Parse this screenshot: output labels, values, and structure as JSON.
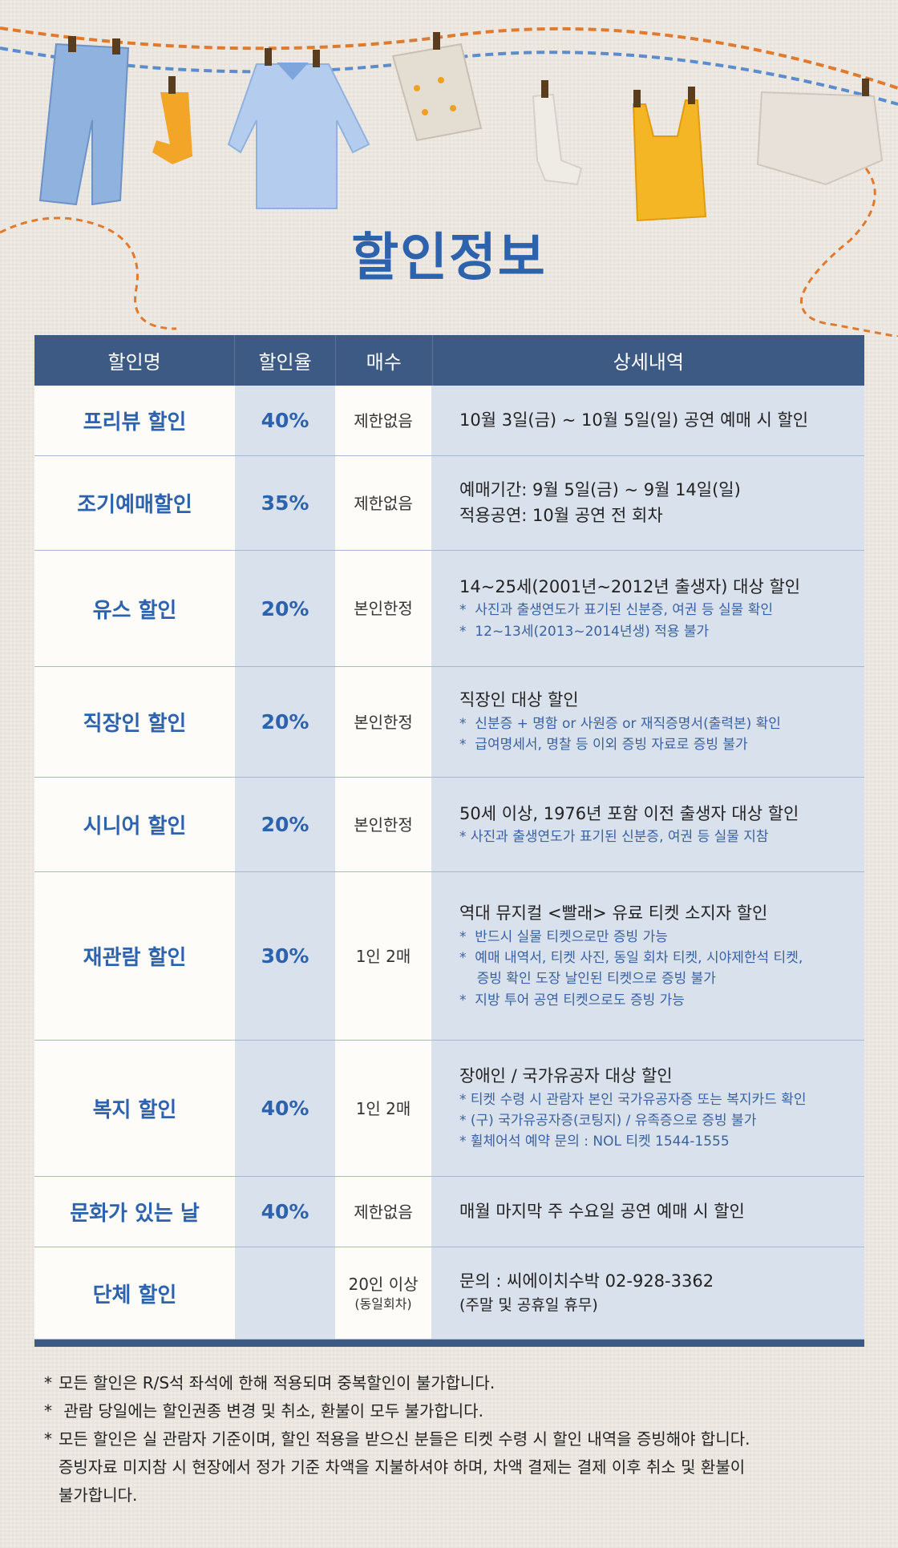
{
  "title": "할인정보",
  "table": {
    "headers": [
      "할인명",
      "할인율",
      "매수",
      "상세내역"
    ],
    "rows": [
      {
        "name": "프리뷰 할인",
        "rate": "40%",
        "qty": "제한없음",
        "qty_sub": "",
        "detail_main": "10월 3일(금) ~ 10월 5일(일) 공연 예매 시 할인",
        "detail_sub": ""
      },
      {
        "name": "조기예매할인",
        "rate": "35%",
        "qty": "제한없음",
        "qty_sub": "",
        "detail_main": "예매기간: 9월 5일(금) ~ 9월 14일(일)\n적용공연: 10월 공연 전 회차",
        "detail_sub": ""
      },
      {
        "name": "유스 할인",
        "rate": "20%",
        "qty": "본인한정",
        "qty_sub": "",
        "detail_main": "14~25세(2001년~2012년 출생자) 대상 할인",
        "detail_sub": "*  사진과 출생연도가 표기된 신분증, 여권 등 실물 확인\n*  12~13세(2013~2014년생) 적용 불가"
      },
      {
        "name": "직장인 할인",
        "rate": "20%",
        "qty": "본인한정",
        "qty_sub": "",
        "detail_main": "직장인 대상 할인",
        "detail_sub": "*  신분증 + 명함 or 사원증 or 재직증명서(출력본) 확인\n*  급여명세서, 명찰 등 이외 증빙 자료로 증빙 불가"
      },
      {
        "name": "시니어 할인",
        "rate": "20%",
        "qty": "본인한정",
        "qty_sub": "",
        "detail_main": "50세 이상, 1976년 포함 이전 출생자 대상 할인",
        "detail_sub": "* 사진과 출생연도가 표기된 신분증, 여권 등 실물 지참"
      },
      {
        "name": "재관람 할인",
        "rate": "30%",
        "qty": "1인 2매",
        "qty_sub": "",
        "detail_main": "역대 뮤지컬 <빨래> 유료 티켓 소지자 할인",
        "detail_sub": "*  반드시 실물 티켓으로만 증빙 가능\n*  예매 내역서, 티켓 사진, 동일 회차 티켓, 시야제한석 티켓,\n    증빙 확인 도장 날인된 티켓으로 증빙 불가\n*  지방 투어 공연 티켓으로도 증빙 가능"
      },
      {
        "name": "복지 할인",
        "rate": "40%",
        "qty": "1인 2매",
        "qty_sub": "",
        "detail_main": "장애인 / 국가유공자 대상 할인",
        "detail_sub": "* 티켓 수령 시 관람자 본인 국가유공자증 또는 복지카드 확인\n* (구) 국가유공자증(코팅지) / 유족증으로 증빙 불가\n* 휠체어석 예약 문의 : NOL 티켓 1544-1555"
      },
      {
        "name": "문화가 있는 날",
        "rate": "40%",
        "qty": "제한없음",
        "qty_sub": "",
        "detail_main": "매월 마지막 주 수요일 공연 예매 시 할인",
        "detail_sub": ""
      },
      {
        "name": "단체 할인",
        "rate": "",
        "qty": "20인 이상",
        "qty_sub": "(동일회차)",
        "detail_main": "문의 : 씨에이치수박 02-928-3362",
        "detail_sub": "(주말 및 공휴일 휴무)"
      }
    ]
  },
  "notes": [
    "모든 할인은 R/S석 좌석에 한해 적용되며 중복할인이 불가합니다.",
    " 관람 당일에는 할인권종 변경 및 취소, 환불이 모두 불가합니다.",
    "모든 할인은 실 관람자 기준이며, 할인 적용을 받으신 분들은 티켓 수령 시 할인 내역을 증빙해야 합니다.\n증빙자료 미지참 시 현장에서 정가 기준 차액을 지불하셔야 하며, 차액 결제는 결제 이후 취소 및 환불이\n불가합니다."
  ],
  "colors": {
    "accent": "#2d62ad",
    "header": "#3d5a85",
    "band": "#d9e1ec"
  }
}
